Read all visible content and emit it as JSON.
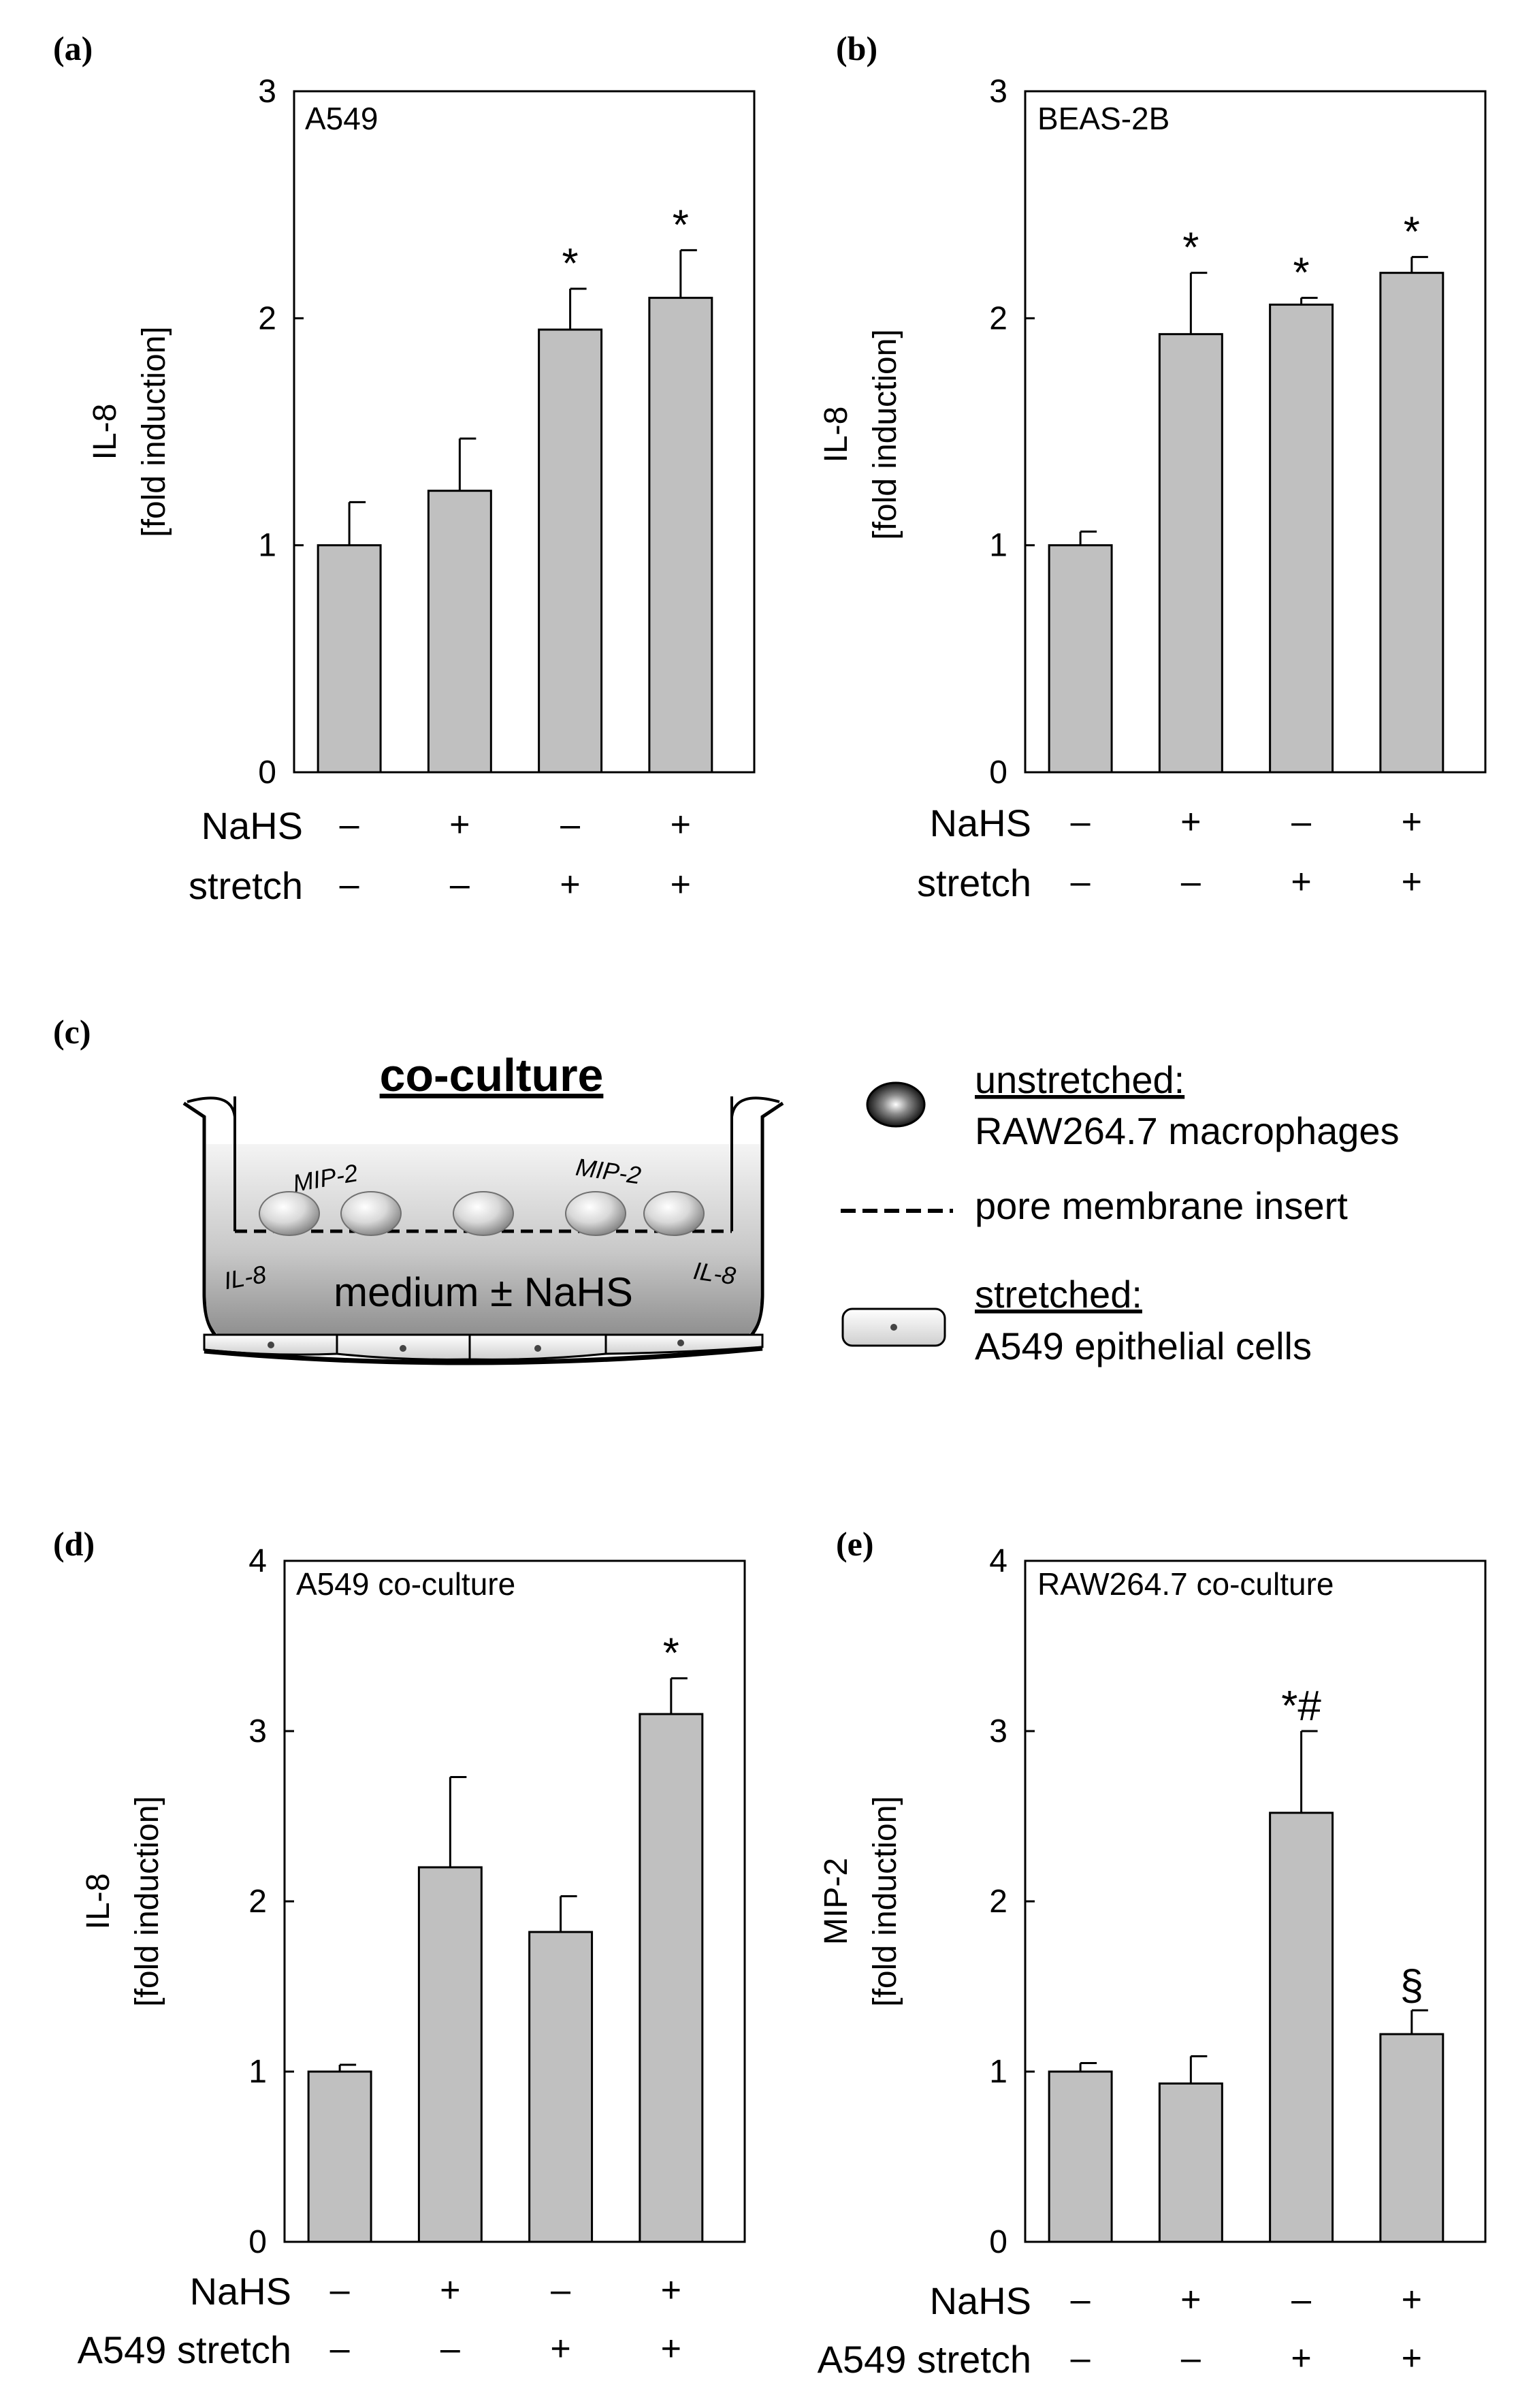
{
  "chart_data": [
    {
      "panel_label": "(a)",
      "type": "bar",
      "box_label": "A549",
      "ylabel_line1": "IL-8",
      "ylabel_line2": "[fold induction]",
      "ylim": [
        0,
        3
      ],
      "yticks": [
        0,
        1,
        2,
        3
      ],
      "values": [
        1.0,
        1.24,
        1.95,
        2.09
      ],
      "errors": [
        0.19,
        0.23,
        0.18,
        0.21
      ],
      "markers": [
        "",
        "",
        "*",
        "*"
      ],
      "conditions": [
        {
          "label": "NaHS",
          "values": [
            "–",
            "+",
            "–",
            "+"
          ]
        },
        {
          "label": "stretch",
          "values": [
            "–",
            "–",
            "+",
            "+"
          ]
        }
      ]
    },
    {
      "panel_label": "(b)",
      "type": "bar",
      "box_label": "BEAS-2B",
      "ylabel_line1": "IL-8",
      "ylabel_line2": "[fold induction]",
      "ylim": [
        0,
        3
      ],
      "yticks": [
        0,
        1,
        2,
        3
      ],
      "values": [
        1.0,
        1.93,
        2.06,
        2.2
      ],
      "errors": [
        0.06,
        0.27,
        0.03,
        0.07
      ],
      "markers": [
        "",
        "*",
        "*",
        "*"
      ],
      "conditions": [
        {
          "label": "NaHS",
          "values": [
            "–",
            "+",
            "–",
            "+"
          ]
        },
        {
          "label": "stretch",
          "values": [
            "–",
            "–",
            "+",
            "+"
          ]
        }
      ]
    },
    {
      "panel_label": "(d)",
      "type": "bar",
      "box_label": "A549 co-culture",
      "ylabel_line1": "IL-8",
      "ylabel_line2": "[fold induction]",
      "ylim": [
        0,
        4
      ],
      "yticks": [
        0,
        1,
        2,
        3,
        4
      ],
      "values": [
        1.0,
        2.2,
        1.82,
        3.1
      ],
      "errors": [
        0.04,
        0.53,
        0.21,
        0.21
      ],
      "markers": [
        "",
        "",
        "",
        "*"
      ],
      "conditions": [
        {
          "label": "NaHS",
          "values": [
            "–",
            "+",
            "–",
            "+"
          ]
        },
        {
          "label": "A549 stretch",
          "values": [
            "–",
            "–",
            "+",
            "+"
          ]
        }
      ]
    },
    {
      "panel_label": "(e)",
      "type": "bar",
      "box_label": "RAW264.7 co-culture",
      "ylabel_line1": "MIP-2",
      "ylabel_line2": "[fold induction]",
      "ylim": [
        0,
        4
      ],
      "yticks": [
        0,
        1,
        2,
        3,
        4
      ],
      "values": [
        1.0,
        0.93,
        2.52,
        1.22
      ],
      "errors": [
        0.05,
        0.16,
        0.48,
        0.14
      ],
      "markers": [
        "",
        "",
        "*#",
        "§"
      ],
      "conditions": [
        {
          "label": "NaHS",
          "values": [
            "–",
            "+",
            "–",
            "+"
          ]
        },
        {
          "label": "A549 stretch",
          "values": [
            "–",
            "–",
            "+",
            "+"
          ]
        }
      ]
    }
  ],
  "diagram": {
    "panel_label": "(c)",
    "title": "co-culture",
    "mip_label": "MIP-2",
    "il_label": "IL-8",
    "medium_label": "medium ± NaHS",
    "legend": {
      "unstretched_title": "unstretched:",
      "unstretched_desc": "RAW264.7 macrophages",
      "membrane_desc": "pore membrane insert",
      "stretched_title": "stretched:",
      "stretched_desc": "A549 epithelial cells"
    }
  },
  "colors": {
    "bar_fill": "#c0c0c0",
    "outline": "#000000",
    "medium_top": "#f2f2f2",
    "medium_bottom": "#8c8c8c"
  }
}
